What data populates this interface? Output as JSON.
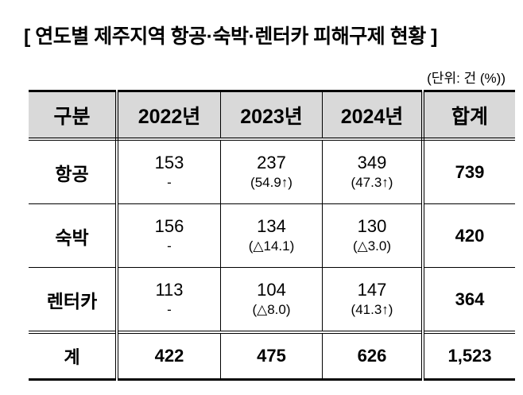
{
  "title": "[ 연도별 제주지역 항공·숙박·렌터카 피해구제 현황 ]",
  "unit": "(단위: 건 (%))",
  "table": {
    "headers": [
      "구분",
      "2022년",
      "2023년",
      "2024년",
      "합계"
    ],
    "rows": [
      {
        "label": "항공",
        "y2022": "153",
        "y2022_sub": "-",
        "y2023": "237",
        "y2023_sub": "(54.9↑)",
        "y2024": "349",
        "y2024_sub": "(47.3↑)",
        "total": "739"
      },
      {
        "label": "숙박",
        "y2022": "156",
        "y2022_sub": "-",
        "y2023": "134",
        "y2023_sub": "(△14.1)",
        "y2024": "130",
        "y2024_sub": "(△3.0)",
        "total": "420"
      },
      {
        "label": "렌터카",
        "y2022": "113",
        "y2022_sub": "-",
        "y2023": "104",
        "y2023_sub": "(△8.0)",
        "y2024": "147",
        "y2024_sub": "(41.3↑)",
        "total": "364"
      }
    ],
    "total_row": {
      "label": "계",
      "y2022": "422",
      "y2023": "475",
      "y2024": "626",
      "total": "1,523"
    }
  }
}
